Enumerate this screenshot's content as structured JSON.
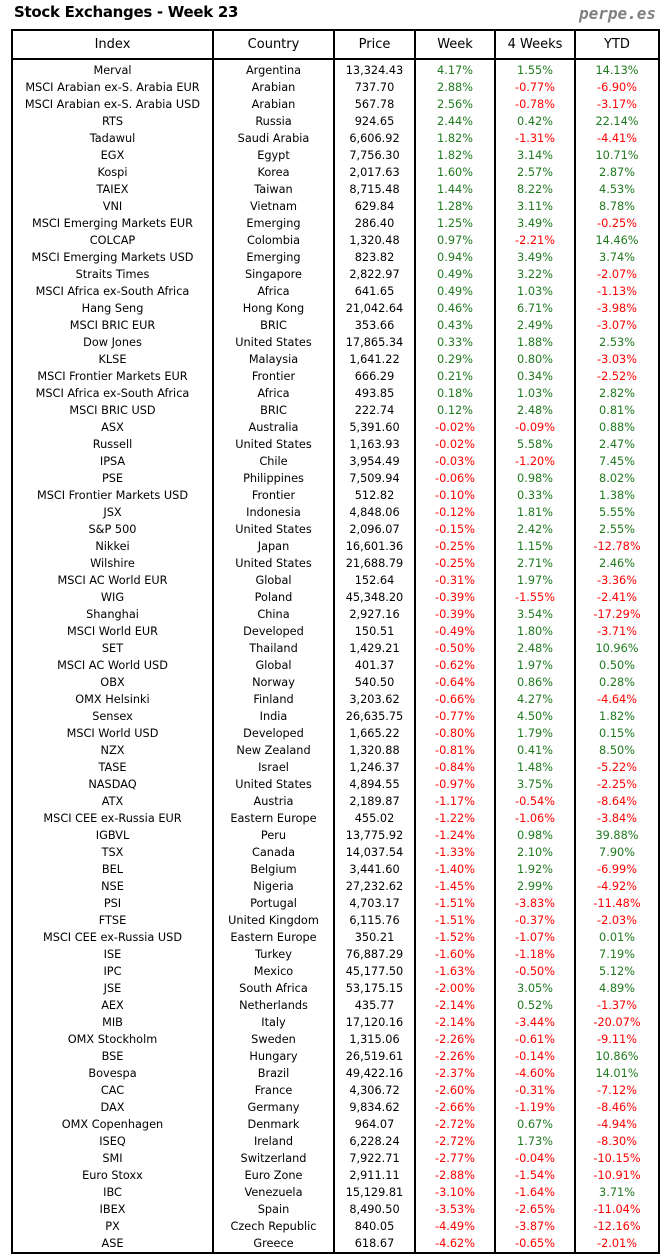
{
  "title": "Stock Exchanges - Week 23",
  "brand": "perpe.es",
  "colors": {
    "positive": "#1f7a1f",
    "negative": "#ff0000"
  },
  "columns": [
    "Index",
    "Country",
    "Price",
    "Week",
    "4 Weeks",
    "YTD"
  ],
  "rows": [
    [
      "Merval",
      "Argentina",
      "13,324.43",
      "4.17%",
      "1.55%",
      "14.13%"
    ],
    [
      "MSCI Arabian ex-S. Arabia EUR",
      "Arabian",
      "737.70",
      "2.88%",
      "-0.77%",
      "-6.90%"
    ],
    [
      "MSCI Arabian ex-S. Arabia USD",
      "Arabian",
      "567.78",
      "2.56%",
      "-0.78%",
      "-3.17%"
    ],
    [
      "RTS",
      "Russia",
      "924.65",
      "2.44%",
      "0.42%",
      "22.14%"
    ],
    [
      "Tadawul",
      "Saudi Arabia",
      "6,606.92",
      "1.82%",
      "-1.31%",
      "-4.41%"
    ],
    [
      "EGX",
      "Egypt",
      "7,756.30",
      "1.82%",
      "3.14%",
      "10.71%"
    ],
    [
      "Kospi",
      "Korea",
      "2,017.63",
      "1.60%",
      "2.57%",
      "2.87%"
    ],
    [
      "TAIEX",
      "Taiwan",
      "8,715.48",
      "1.44%",
      "8.22%",
      "4.53%"
    ],
    [
      "VNI",
      "Vietnam",
      "629.84",
      "1.28%",
      "3.11%",
      "8.78%"
    ],
    [
      "MSCI Emerging Markets EUR",
      "Emerging",
      "286.40",
      "1.25%",
      "3.49%",
      "-0.25%"
    ],
    [
      "COLCAP",
      "Colombia",
      "1,320.48",
      "0.97%",
      "-2.21%",
      "14.46%"
    ],
    [
      "MSCI Emerging Markets USD",
      "Emerging",
      "823.82",
      "0.94%",
      "3.49%",
      "3.74%"
    ],
    [
      "Straits Times",
      "Singapore",
      "2,822.97",
      "0.49%",
      "3.22%",
      "-2.07%"
    ],
    [
      "MSCI Africa ex-South Africa",
      "Africa",
      "641.65",
      "0.49%",
      "1.03%",
      "-1.13%"
    ],
    [
      "Hang Seng",
      "Hong Kong",
      "21,042.64",
      "0.46%",
      "6.71%",
      "-3.98%"
    ],
    [
      "MSCI BRIC EUR",
      "BRIC",
      "353.66",
      "0.43%",
      "2.49%",
      "-3.07%"
    ],
    [
      "Dow Jones",
      "United States",
      "17,865.34",
      "0.33%",
      "1.88%",
      "2.53%"
    ],
    [
      "KLSE",
      "Malaysia",
      "1,641.22",
      "0.29%",
      "0.80%",
      "-3.03%"
    ],
    [
      "MSCI Frontier Markets EUR",
      "Frontier",
      "666.29",
      "0.21%",
      "0.34%",
      "-2.52%"
    ],
    [
      "MSCI Africa ex-South Africa",
      "Africa",
      "493.85",
      "0.18%",
      "1.03%",
      "2.82%"
    ],
    [
      "MSCI BRIC USD",
      "BRIC",
      "222.74",
      "0.12%",
      "2.48%",
      "0.81%"
    ],
    [
      "ASX",
      "Australia",
      "5,391.60",
      "-0.02%",
      "-0.09%",
      "0.88%"
    ],
    [
      "Russell",
      "United States",
      "1,163.93",
      "-0.02%",
      "5.58%",
      "2.47%"
    ],
    [
      "IPSA",
      "Chile",
      "3,954.49",
      "-0.03%",
      "-1.20%",
      "7.45%"
    ],
    [
      "PSE",
      "Philippines",
      "7,509.94",
      "-0.06%",
      "0.98%",
      "8.02%"
    ],
    [
      "MSCI Frontier Markets USD",
      "Frontier",
      "512.82",
      "-0.10%",
      "0.33%",
      "1.38%"
    ],
    [
      "JSX",
      "Indonesia",
      "4,848.06",
      "-0.12%",
      "1.81%",
      "5.55%"
    ],
    [
      "S&P 500",
      "United States",
      "2,096.07",
      "-0.15%",
      "2.42%",
      "2.55%"
    ],
    [
      "Nikkei",
      "Japan",
      "16,601.36",
      "-0.25%",
      "1.15%",
      "-12.78%"
    ],
    [
      "Wilshire",
      "United States",
      "21,688.79",
      "-0.25%",
      "2.71%",
      "2.46%"
    ],
    [
      "MSCI AC World EUR",
      "Global",
      "152.64",
      "-0.31%",
      "1.97%",
      "-3.36%"
    ],
    [
      "WIG",
      "Poland",
      "45,348.20",
      "-0.39%",
      "-1.55%",
      "-2.41%"
    ],
    [
      "Shanghai",
      "China",
      "2,927.16",
      "-0.39%",
      "3.54%",
      "-17.29%"
    ],
    [
      "MSCI World EUR",
      "Developed",
      "150.51",
      "-0.49%",
      "1.80%",
      "-3.71%"
    ],
    [
      "SET",
      "Thailand",
      "1,429.21",
      "-0.50%",
      "2.48%",
      "10.96%"
    ],
    [
      "MSCI AC World USD",
      "Global",
      "401.37",
      "-0.62%",
      "1.97%",
      "0.50%"
    ],
    [
      "OBX",
      "Norway",
      "540.50",
      "-0.64%",
      "0.86%",
      "0.28%"
    ],
    [
      "OMX Helsinki",
      "Finland",
      "3,203.62",
      "-0.66%",
      "4.27%",
      "-4.64%"
    ],
    [
      "Sensex",
      "India",
      "26,635.75",
      "-0.77%",
      "4.50%",
      "1.82%"
    ],
    [
      "MSCI World USD",
      "Developed",
      "1,665.22",
      "-0.80%",
      "1.79%",
      "0.15%"
    ],
    [
      "NZX",
      "New Zealand",
      "1,320.88",
      "-0.81%",
      "0.41%",
      "8.50%"
    ],
    [
      "TASE",
      "Israel",
      "1,246.37",
      "-0.84%",
      "1.48%",
      "-5.22%"
    ],
    [
      "NASDAQ",
      "United States",
      "4,894.55",
      "-0.97%",
      "3.75%",
      "-2.25%"
    ],
    [
      "ATX",
      "Austria",
      "2,189.87",
      "-1.17%",
      "-0.54%",
      "-8.64%"
    ],
    [
      "MSCI CEE ex-Russia EUR",
      "Eastern Europe",
      "455.02",
      "-1.22%",
      "-1.06%",
      "-3.84%"
    ],
    [
      "IGBVL",
      "Peru",
      "13,775.92",
      "-1.24%",
      "0.98%",
      "39.88%"
    ],
    [
      "TSX",
      "Canada",
      "14,037.54",
      "-1.33%",
      "2.10%",
      "7.90%"
    ],
    [
      "BEL",
      "Belgium",
      "3,441.60",
      "-1.40%",
      "1.92%",
      "-6.99%"
    ],
    [
      "NSE",
      "Nigeria",
      "27,232.62",
      "-1.45%",
      "2.99%",
      "-4.92%"
    ],
    [
      "PSI",
      "Portugal",
      "4,703.17",
      "-1.51%",
      "-3.83%",
      "-11.48%"
    ],
    [
      "FTSE",
      "United Kingdom",
      "6,115.76",
      "-1.51%",
      "-0.37%",
      "-2.03%"
    ],
    [
      "MSCI CEE ex-Russia USD",
      "Eastern Europe",
      "350.21",
      "-1.52%",
      "-1.07%",
      "0.01%"
    ],
    [
      "ISE",
      "Turkey",
      "76,887.29",
      "-1.60%",
      "-1.18%",
      "7.19%"
    ],
    [
      "IPC",
      "Mexico",
      "45,177.50",
      "-1.63%",
      "-0.50%",
      "5.12%"
    ],
    [
      "JSE",
      "South Africa",
      "53,175.15",
      "-2.00%",
      "3.05%",
      "4.89%"
    ],
    [
      "AEX",
      "Netherlands",
      "435.77",
      "-2.14%",
      "0.52%",
      "-1.37%"
    ],
    [
      "MIB",
      "Italy",
      "17,120.16",
      "-2.14%",
      "-3.44%",
      "-20.07%"
    ],
    [
      "OMX Stockholm",
      "Sweden",
      "1,315.06",
      "-2.26%",
      "-0.61%",
      "-9.11%"
    ],
    [
      "BSE",
      "Hungary",
      "26,519.61",
      "-2.26%",
      "-0.14%",
      "10.86%"
    ],
    [
      "Bovespa",
      "Brazil",
      "49,422.16",
      "-2.37%",
      "-4.60%",
      "14.01%"
    ],
    [
      "CAC",
      "France",
      "4,306.72",
      "-2.60%",
      "-0.31%",
      "-7.12%"
    ],
    [
      "DAX",
      "Germany",
      "9,834.62",
      "-2.66%",
      "-1.19%",
      "-8.46%"
    ],
    [
      "OMX Copenhagen",
      "Denmark",
      "964.07",
      "-2.72%",
      "0.67%",
      "-4.94%"
    ],
    [
      "ISEQ",
      "Ireland",
      "6,228.24",
      "-2.72%",
      "1.73%",
      "-8.30%"
    ],
    [
      "SMI",
      "Switzerland",
      "7,922.71",
      "-2.77%",
      "-0.04%",
      "-10.15%"
    ],
    [
      "Euro Stoxx",
      "Euro Zone",
      "2,911.11",
      "-2.88%",
      "-1.54%",
      "-10.91%"
    ],
    [
      "IBC",
      "Venezuela",
      "15,129.81",
      "-3.10%",
      "-1.64%",
      "3.71%"
    ],
    [
      "IBEX",
      "Spain",
      "8,490.50",
      "-3.53%",
      "-2.65%",
      "-11.04%"
    ],
    [
      "PX",
      "Czech Republic",
      "840.05",
      "-4.49%",
      "-3.87%",
      "-12.16%"
    ],
    [
      "ASE",
      "Greece",
      "618.67",
      "-4.62%",
      "-0.65%",
      "-2.01%"
    ]
  ]
}
